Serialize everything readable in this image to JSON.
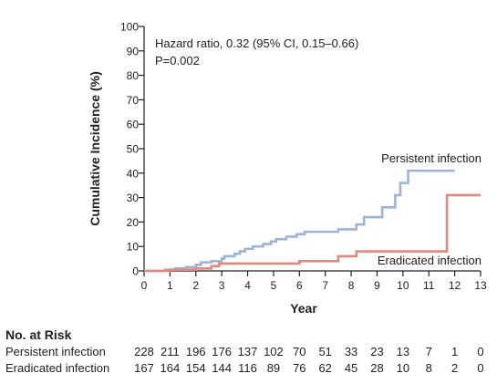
{
  "chart_data": {
    "type": "line",
    "title": "",
    "xlabel": "Year",
    "ylabel": "Cumulative Incidence (%)",
    "xlim": [
      0,
      13
    ],
    "ylim": [
      0,
      100
    ],
    "x_ticks": [
      0,
      1,
      2,
      3,
      4,
      5,
      6,
      7,
      8,
      9,
      10,
      11,
      12,
      13
    ],
    "y_ticks": [
      0,
      10,
      20,
      30,
      40,
      50,
      60,
      70,
      80,
      90,
      100
    ],
    "annotation": {
      "hazard_line": "Hazard ratio, 0.32 (95% CI, 0.15–0.66)",
      "p_line": "P=0.002"
    },
    "series": [
      {
        "name": "Persistent infection",
        "color": "#9db4d6",
        "steps": [
          [
            0,
            0
          ],
          [
            0.8,
            0.5
          ],
          [
            1.2,
            1
          ],
          [
            1.6,
            1.5
          ],
          [
            2.0,
            2.5
          ],
          [
            2.2,
            3.5
          ],
          [
            2.6,
            4
          ],
          [
            3.0,
            5
          ],
          [
            3.1,
            6
          ],
          [
            3.5,
            7
          ],
          [
            3.7,
            8
          ],
          [
            3.9,
            9
          ],
          [
            4.2,
            10
          ],
          [
            4.6,
            11
          ],
          [
            4.9,
            12
          ],
          [
            5.1,
            13
          ],
          [
            5.5,
            14
          ],
          [
            5.9,
            15
          ],
          [
            6.2,
            16
          ],
          [
            7.5,
            17
          ],
          [
            8.2,
            19
          ],
          [
            8.5,
            22
          ],
          [
            9.2,
            26
          ],
          [
            9.7,
            31
          ],
          [
            9.9,
            36
          ],
          [
            10.2,
            41
          ],
          [
            12.0,
            41
          ]
        ]
      },
      {
        "name": "Eradicated infection",
        "color": "#e0897d",
        "steps": [
          [
            0,
            0
          ],
          [
            1.0,
            0.5
          ],
          [
            2.0,
            1
          ],
          [
            2.6,
            2
          ],
          [
            2.9,
            3
          ],
          [
            6.0,
            4
          ],
          [
            7.5,
            6
          ],
          [
            8.2,
            8
          ],
          [
            11.7,
            31
          ],
          [
            13.0,
            31
          ]
        ]
      }
    ]
  },
  "risk_table": {
    "title": "No. at Risk",
    "rows": [
      {
        "label": "Persistent infection",
        "values": [
          "228",
          "211",
          "196",
          "176",
          "137",
          "102",
          "70",
          "51",
          "33",
          "23",
          "13",
          "7",
          "1",
          "0"
        ]
      },
      {
        "label": "Eradicated infection",
        "values": [
          "167",
          "164",
          "154",
          "144",
          "116",
          "89",
          "76",
          "62",
          "45",
          "28",
          "10",
          "8",
          "2",
          "0"
        ]
      }
    ]
  }
}
